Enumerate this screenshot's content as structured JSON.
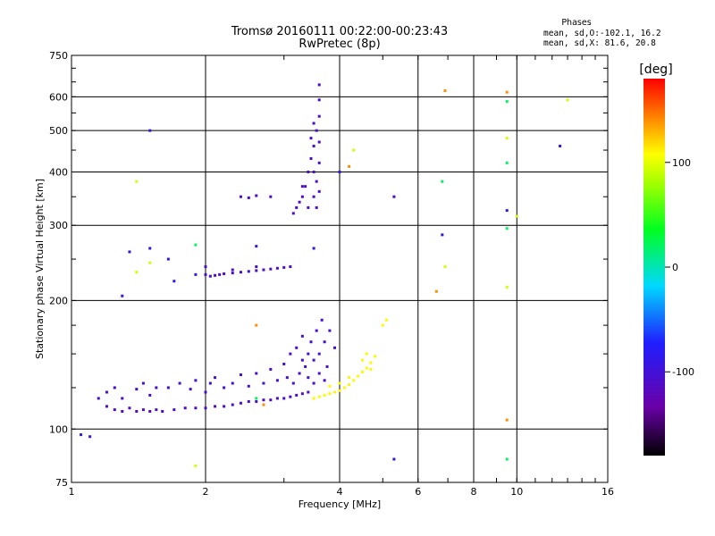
{
  "chart_data": {
    "type": "scatter",
    "title": "Tromsø 20160111 00:22:00-00:23:43",
    "subtitle": "RwPretec (8p)",
    "xlabel": "Frequency [MHz]",
    "ylabel": "Stationary phase Virtual Height [km]",
    "x_scale": "log",
    "y_scale": "log",
    "xlim": [
      1,
      16
    ],
    "ylim": [
      75,
      750
    ],
    "x_ticks": [
      "1",
      "2",
      "4",
      "6",
      "8",
      "10",
      "16"
    ],
    "y_ticks": [
      "75",
      "100",
      "200",
      "300",
      "400",
      "500",
      "600",
      "750"
    ],
    "grid": true,
    "phases_annotation": {
      "heading": "Phases",
      "o_line": "mean, sd,O:-102.1, 16.2",
      "x_line": "mean, sd,X: 81.6, 20.8"
    },
    "colorbar": {
      "label": "[deg]",
      "range": [
        -180,
        180
      ],
      "ticks": [
        "100",
        "0",
        "-100"
      ],
      "colormap": "rainbow: black-purple-blue-cyan-green-yellow-red"
    },
    "point_groups": [
      {
        "name": "o-trace low",
        "phase": -110,
        "points": [
          [
            1.2,
            113
          ],
          [
            1.25,
            111
          ],
          [
            1.3,
            110
          ],
          [
            1.35,
            112
          ],
          [
            1.4,
            110
          ],
          [
            1.45,
            111
          ],
          [
            1.5,
            110
          ],
          [
            1.55,
            111
          ],
          [
            1.6,
            110
          ],
          [
            1.7,
            111
          ],
          [
            1.8,
            112
          ],
          [
            1.9,
            112
          ],
          [
            2.0,
            112
          ],
          [
            2.1,
            113
          ],
          [
            2.2,
            113
          ],
          [
            2.3,
            114
          ],
          [
            2.4,
            115
          ],
          [
            2.5,
            116
          ],
          [
            2.6,
            116
          ],
          [
            2.7,
            117
          ],
          [
            2.8,
            117
          ],
          [
            2.9,
            118
          ],
          [
            3.0,
            118
          ],
          [
            3.1,
            119
          ],
          [
            3.2,
            120
          ],
          [
            3.3,
            121
          ],
          [
            3.4,
            122
          ]
        ]
      },
      {
        "name": "o-trace scatter",
        "phase": -105,
        "points": [
          [
            1.15,
            118
          ],
          [
            1.2,
            122
          ],
          [
            1.25,
            125
          ],
          [
            1.3,
            118
          ],
          [
            1.4,
            124
          ],
          [
            1.45,
            128
          ],
          [
            1.5,
            120
          ],
          [
            1.55,
            125
          ],
          [
            1.65,
            125
          ],
          [
            1.75,
            128
          ],
          [
            1.85,
            124
          ],
          [
            1.9,
            130
          ],
          [
            2.0,
            122
          ],
          [
            2.05,
            128
          ],
          [
            2.1,
            132
          ],
          [
            2.2,
            125
          ],
          [
            2.3,
            128
          ],
          [
            2.4,
            134
          ],
          [
            2.5,
            126
          ],
          [
            2.6,
            135
          ],
          [
            2.7,
            128
          ],
          [
            2.8,
            138
          ],
          [
            2.9,
            130
          ],
          [
            3.0,
            142
          ],
          [
            3.05,
            132
          ],
          [
            3.1,
            150
          ],
          [
            3.15,
            128
          ],
          [
            3.2,
            155
          ],
          [
            3.25,
            135
          ],
          [
            3.3,
            165
          ],
          [
            3.35,
            140
          ],
          [
            3.4,
            150
          ],
          [
            3.45,
            160
          ],
          [
            3.5,
            145
          ],
          [
            3.55,
            170
          ],
          [
            3.6,
            150
          ],
          [
            3.65,
            180
          ],
          [
            3.7,
            160
          ],
          [
            3.75,
            140
          ],
          [
            3.8,
            170
          ],
          [
            3.9,
            155
          ],
          [
            3.3,
            145
          ],
          [
            3.4,
            132
          ],
          [
            3.5,
            128
          ],
          [
            3.6,
            135
          ],
          [
            3.7,
            130
          ]
        ]
      },
      {
        "name": "o-trace 230 km",
        "phase": -110,
        "points": [
          [
            2.0,
            230
          ],
          [
            2.05,
            228
          ],
          [
            2.1,
            229
          ],
          [
            2.15,
            230
          ],
          [
            2.2,
            231
          ],
          [
            2.3,
            232
          ],
          [
            2.4,
            233
          ],
          [
            2.5,
            234
          ],
          [
            2.6,
            235
          ],
          [
            2.7,
            236
          ],
          [
            2.8,
            237
          ],
          [
            2.9,
            238
          ],
          [
            3.0,
            239
          ],
          [
            3.1,
            240
          ],
          [
            2.0,
            240
          ],
          [
            2.3,
            236
          ],
          [
            2.6,
            240
          ]
        ]
      },
      {
        "name": "o-trace F-spread",
        "phase": -110,
        "points": [
          [
            3.15,
            320
          ],
          [
            3.2,
            330
          ],
          [
            3.25,
            340
          ],
          [
            3.3,
            350
          ],
          [
            3.35,
            370
          ],
          [
            3.4,
            400
          ],
          [
            3.45,
            430
          ],
          [
            3.5,
            460
          ],
          [
            3.55,
            500
          ],
          [
            3.6,
            540
          ],
          [
            3.6,
            590
          ],
          [
            3.6,
            640
          ],
          [
            3.5,
            350
          ],
          [
            3.55,
            380
          ],
          [
            3.6,
            420
          ],
          [
            3.6,
            470
          ],
          [
            3.5,
            520
          ],
          [
            3.45,
            480
          ],
          [
            3.5,
            400
          ],
          [
            3.55,
            330
          ],
          [
            3.6,
            360
          ],
          [
            3.4,
            330
          ],
          [
            3.3,
            370
          ],
          [
            2.4,
            350
          ],
          [
            2.5,
            348
          ],
          [
            2.6,
            352
          ],
          [
            2.8,
            350
          ],
          [
            5.3,
            350
          ]
        ]
      },
      {
        "name": "x-trace",
        "phase": 110,
        "points": [
          [
            3.5,
            118
          ],
          [
            3.6,
            119
          ],
          [
            3.7,
            120
          ],
          [
            3.8,
            121
          ],
          [
            3.9,
            122
          ],
          [
            4.0,
            123
          ],
          [
            4.1,
            125
          ],
          [
            4.2,
            127
          ],
          [
            4.3,
            130
          ],
          [
            4.4,
            133
          ],
          [
            4.5,
            136
          ],
          [
            4.6,
            139
          ],
          [
            4.7,
            143
          ],
          [
            4.8,
            148
          ],
          [
            4.6,
            150
          ],
          [
            4.5,
            145
          ],
          [
            4.7,
            138
          ],
          [
            3.8,
            126
          ],
          [
            4.0,
            128
          ],
          [
            4.2,
            132
          ],
          [
            5.0,
            175
          ],
          [
            5.1,
            180
          ]
        ]
      },
      {
        "name": "isolated",
        "phase": -95,
        "points": [
          [
            1.05,
            97
          ],
          [
            1.1,
            96
          ],
          [
            1.3,
            205
          ],
          [
            1.35,
            260
          ],
          [
            1.5,
            500
          ],
          [
            1.5,
            265
          ],
          [
            1.65,
            250
          ],
          [
            1.7,
            222
          ],
          [
            1.9,
            230
          ],
          [
            2.6,
            268
          ],
          [
            3.5,
            265
          ],
          [
            4.0,
            400
          ],
          [
            5.3,
            85
          ],
          [
            6.8,
            285
          ],
          [
            9.5,
            325
          ],
          [
            12.5,
            460
          ]
        ]
      },
      {
        "name": "green",
        "phase": 20,
        "points": [
          [
            1.9,
            270
          ],
          [
            2.6,
            118
          ],
          [
            9.5,
            585
          ],
          [
            9.5,
            420
          ],
          [
            9.5,
            295
          ],
          [
            6.8,
            380
          ],
          [
            9.5,
            85
          ]
        ]
      },
      {
        "name": "orange-red",
        "phase": 140,
        "points": [
          [
            6.9,
            620
          ],
          [
            9.5,
            615
          ],
          [
            9.5,
            105
          ],
          [
            4.2,
            412
          ],
          [
            6.6,
            210
          ],
          [
            2.6,
            175
          ],
          [
            2.7,
            114
          ]
        ]
      },
      {
        "name": "yellow",
        "phase": 95,
        "points": [
          [
            1.4,
            380
          ],
          [
            1.5,
            245
          ],
          [
            1.4,
            233
          ],
          [
            1.9,
            82
          ],
          [
            6.9,
            240
          ],
          [
            4.3,
            450
          ],
          [
            9.5,
            480
          ],
          [
            9.5,
            215
          ],
          [
            10.0,
            315
          ],
          [
            13.0,
            590
          ]
        ]
      }
    ]
  }
}
